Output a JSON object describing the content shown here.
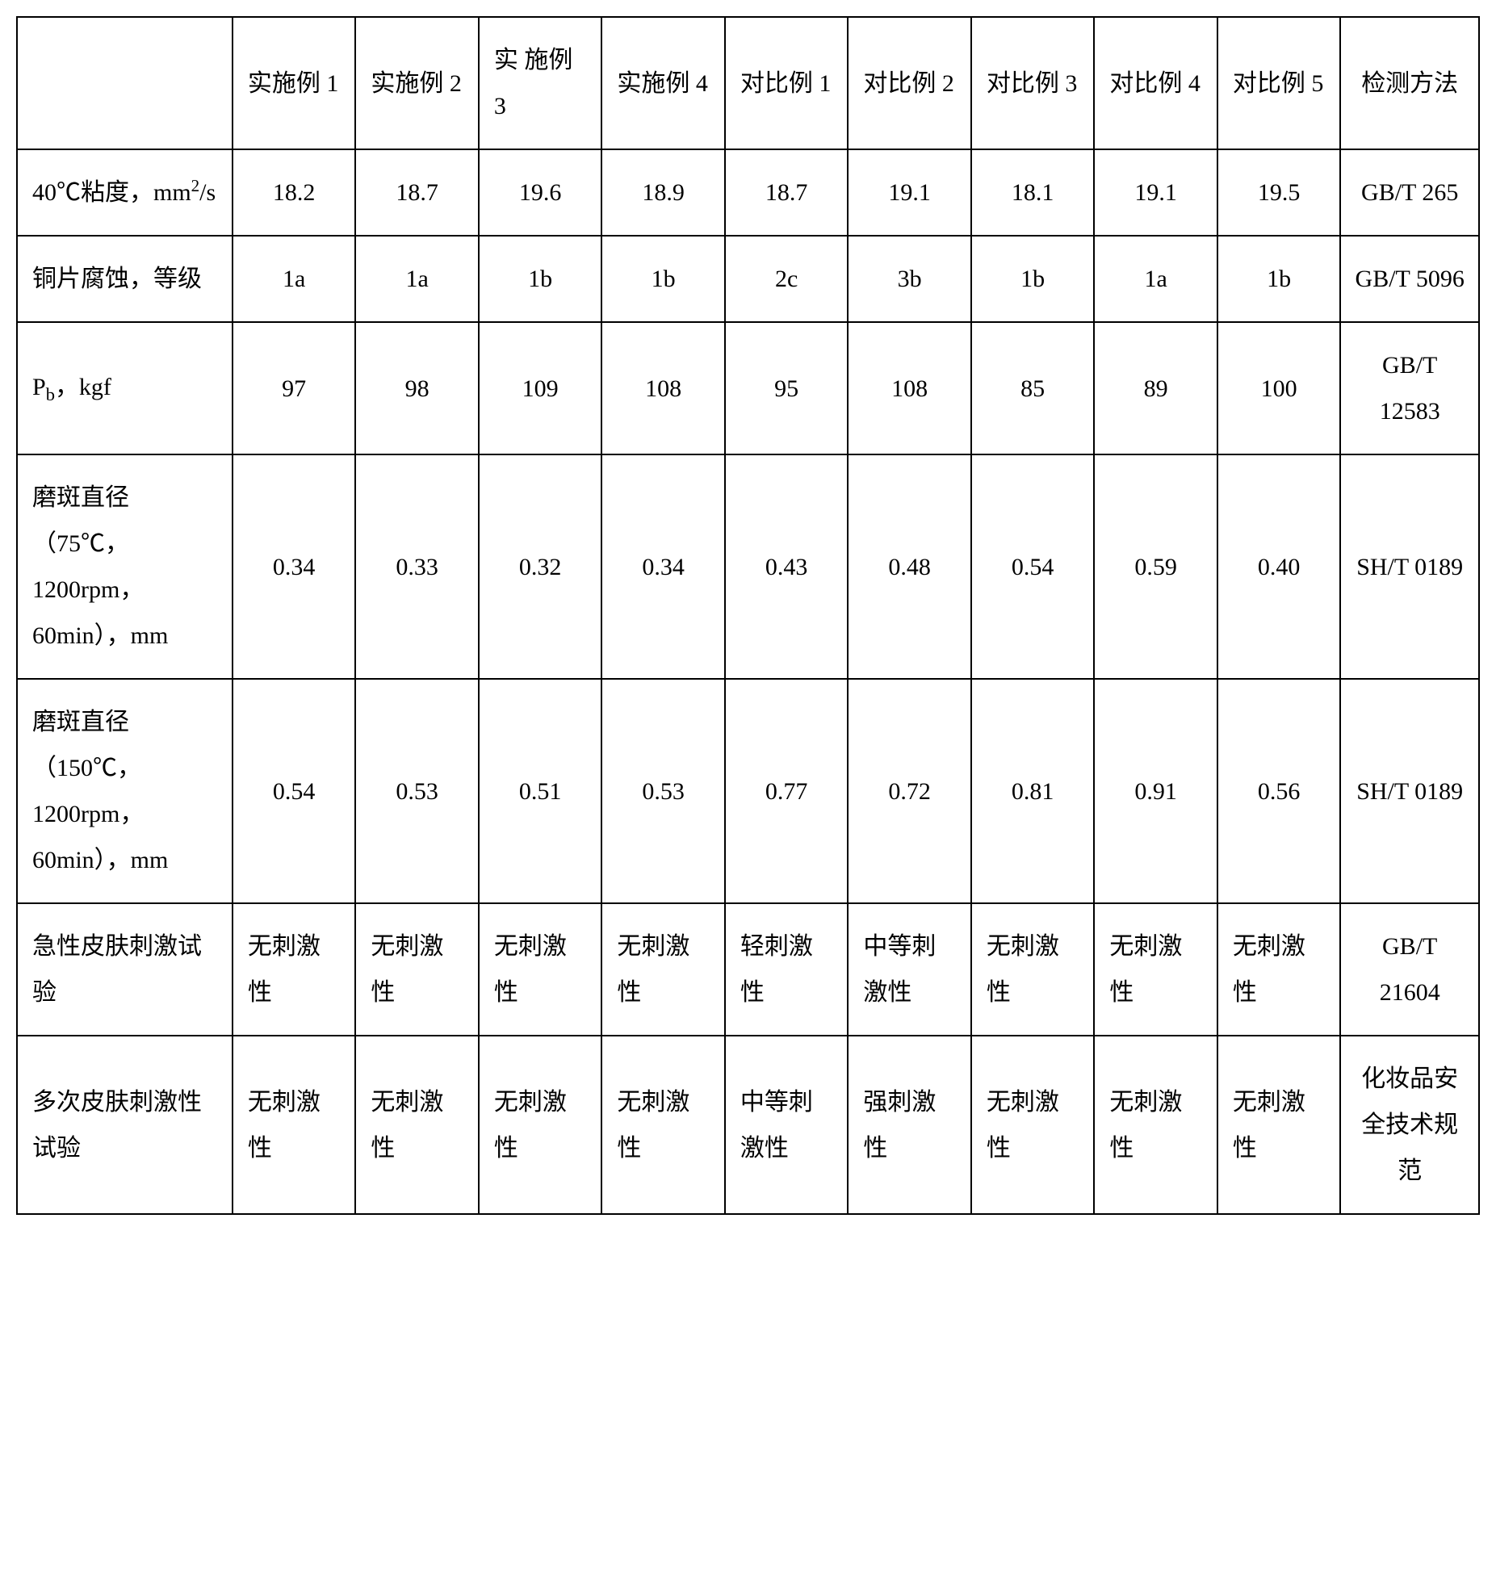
{
  "table": {
    "border_color": "#000000",
    "background_color": "#ffffff",
    "text_color": "#000000",
    "font_size_pt": 22,
    "columns": [
      {
        "key": "label",
        "header": ""
      },
      {
        "key": "e1",
        "header": "实施例 1"
      },
      {
        "key": "e2",
        "header": "实施例 2"
      },
      {
        "key": "e3",
        "header": "实 施例 3"
      },
      {
        "key": "e4",
        "header": "实施例 4"
      },
      {
        "key": "c1",
        "header": "对比例 1"
      },
      {
        "key": "c2",
        "header": "对比例 2"
      },
      {
        "key": "c3",
        "header": "对比例 3"
      },
      {
        "key": "c4",
        "header": "对比例 4"
      },
      {
        "key": "c5",
        "header": "对比例 5"
      },
      {
        "key": "method",
        "header": "检测方法"
      }
    ],
    "rows": [
      {
        "label_html": "40℃粘度，mm<sup>2</sup>/s",
        "cells": [
          "18.2",
          "18.7",
          "19.6",
          "18.9",
          "18.7",
          "19.1",
          "18.1",
          "19.1",
          "19.5",
          "GB/T 265"
        ],
        "align": "center"
      },
      {
        "label_html": "铜片腐蚀，等级",
        "cells": [
          "1a",
          "1a",
          "1b",
          "1b",
          "2c",
          "3b",
          "1b",
          "1a",
          "1b",
          "GB/T 5096"
        ],
        "align": "center"
      },
      {
        "label_html": "P<sub>b</sub>，kgf",
        "cells": [
          "97",
          "98",
          "109",
          "108",
          "95",
          "108",
          "85",
          "89",
          "100",
          "GB/T 12583"
        ],
        "align": "center"
      },
      {
        "label_html": "磨斑直径（75℃，1200rpm，60min），mm",
        "cells": [
          "0.34",
          "0.33",
          "0.32",
          "0.34",
          "0.43",
          "0.48",
          "0.54",
          "0.59",
          "0.40",
          "SH/T 0189"
        ],
        "align": "center"
      },
      {
        "label_html": "磨斑直径（150℃，1200rpm，60min），mm",
        "cells": [
          "0.54",
          "0.53",
          "0.51",
          "0.53",
          "0.77",
          "0.72",
          "0.81",
          "0.91",
          "0.56",
          "SH/T 0189"
        ],
        "align": "center"
      },
      {
        "label_html": "急性皮肤刺激试验",
        "cells": [
          "无刺激性",
          "无刺激性",
          "无刺激性",
          "无刺激性",
          "轻刺激性",
          "中等刺激性",
          "无刺激性",
          "无刺激性",
          "无刺激性",
          "GB/T 21604"
        ],
        "align": "left",
        "method_align": "center"
      },
      {
        "label_html": "多次皮肤刺激性试验",
        "cells": [
          "无刺激性",
          "无刺激性",
          "无刺激性",
          "无刺激性",
          "中等刺激性",
          "强刺激性",
          "无刺激性",
          "无刺激性",
          "无刺激性",
          "化妆品安全技术规范"
        ],
        "align": "left",
        "method_align": "center"
      }
    ]
  }
}
